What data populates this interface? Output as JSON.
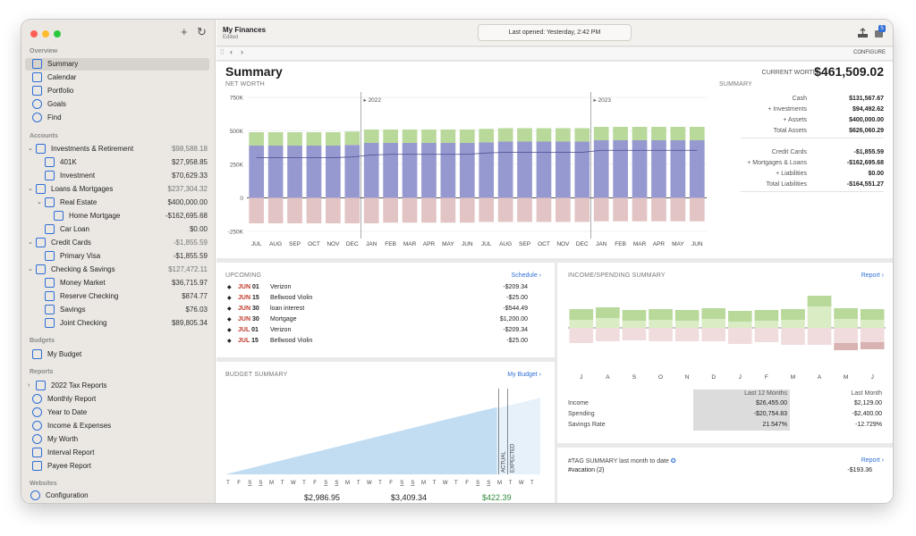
{
  "sidebar": {
    "add_btn": "+",
    "refresh_btn": "↻",
    "sections": {
      "overview": "Overview",
      "accounts": "Accounts",
      "budgets": "Budgets",
      "reports": "Reports",
      "websites": "Websites"
    },
    "overview": [
      {
        "label": "Summary",
        "icon": "bank-icon"
      },
      {
        "label": "Calendar",
        "icon": "calendar-icon"
      },
      {
        "label": "Portfolio",
        "icon": "briefcase-icon"
      },
      {
        "label": "Goals",
        "icon": "target-icon"
      },
      {
        "label": "Find",
        "icon": "magnifier-icon"
      }
    ],
    "accounts": [
      {
        "label": "Investments & Retirement",
        "value": "$98,588.18",
        "icon": "folder-icon"
      },
      {
        "label": "401K",
        "value": "$27,958.85",
        "icon": "sun-icon"
      },
      {
        "label": "Investment",
        "value": "$70,629.33",
        "icon": "chart-icon"
      },
      {
        "label": "Loans & Mortgages",
        "value": "$237,304.32",
        "icon": "folder-icon"
      },
      {
        "label": "Real Estate",
        "value": "$400,000.00",
        "icon": "house-icon"
      },
      {
        "label": "Home Mortgage",
        "value": "-$162,695.68",
        "icon": "document-icon"
      },
      {
        "label": "Car Loan",
        "value": "$0.00",
        "icon": "document-icon"
      },
      {
        "label": "Credit Cards",
        "value": "-$1,855.59",
        "icon": "folder-icon"
      },
      {
        "label": "Primary Visa",
        "value": "-$1,855.59",
        "icon": "credit-card-icon"
      },
      {
        "label": "Checking & Savings",
        "value": "$127,472.11",
        "icon": "folder-icon"
      },
      {
        "label": "Money Market",
        "value": "$36,715.97",
        "icon": "money-icon"
      },
      {
        "label": "Reserve Checking",
        "value": "$874.77",
        "icon": "check-icon"
      },
      {
        "label": "Savings",
        "value": "$76.03",
        "icon": "piggy-icon"
      },
      {
        "label": "Joint Checking",
        "value": "$89,805.34",
        "icon": "handshake-icon"
      }
    ],
    "budgets": [
      {
        "label": "My Budget",
        "icon": "budget-icon"
      }
    ],
    "reports": [
      {
        "label": "2022 Tax Reports",
        "icon": "folder-icon"
      },
      {
        "label": "Monthly Report",
        "icon": "pie-icon"
      },
      {
        "label": "Year to Date",
        "icon": "pie-icon"
      },
      {
        "label": "Income & Expenses",
        "icon": "pie-icon"
      },
      {
        "label": "My Worth",
        "icon": "pie-icon"
      },
      {
        "label": "Interval Report",
        "icon": "document-icon"
      },
      {
        "label": "Payee Report",
        "icon": "table-icon"
      }
    ],
    "websites": [
      {
        "label": "Configuration",
        "icon": "gear-icon"
      }
    ]
  },
  "header": {
    "title": "My Finances",
    "subtitle": "Edited",
    "last_opened": "Last opened: Yesterday, 2:42 PM",
    "configure": "CONFIGURE",
    "badge": "5"
  },
  "summary": {
    "title": "Summary",
    "current_worth_label": "CURRENT WORTH",
    "current_worth": "$461,509.02",
    "net_worth_label": "NET WORTH",
    "summary_label": "SUMMARY",
    "rows": [
      {
        "label": "Cash",
        "value": "$131,567.67"
      },
      {
        "label": "+ Investments",
        "value": "$94,492.62"
      },
      {
        "label": "+ Assets",
        "value": "$400,000.00"
      },
      {
        "label": "Total Assets",
        "value": "$626,060.29"
      },
      {
        "label": "Credit Cards",
        "value": "-$1,855.59"
      },
      {
        "label": "+ Mortgages & Loans",
        "value": "-$162,695.68"
      },
      {
        "label": "+ Liabilities",
        "value": "$0.00"
      },
      {
        "label": "Total Liabilities",
        "value": "-$164,551.27"
      }
    ]
  },
  "upcoming": {
    "title": "UPCOMING",
    "link": "Schedule ›",
    "rows": [
      {
        "month": "JUN",
        "day": "01",
        "name": "Verizon",
        "amount": "-$209.34"
      },
      {
        "month": "JUN",
        "day": "15",
        "name": "Bellwood Violin",
        "amount": "-$25.00"
      },
      {
        "month": "JUN",
        "day": "30",
        "name": "loan interest",
        "amount": "-$544.49"
      },
      {
        "month": "JUN",
        "day": "30",
        "name": "Mortgage",
        "amount": "$1,200.00"
      },
      {
        "month": "JUL",
        "day": "01",
        "name": "Verizon",
        "amount": "-$209.34"
      },
      {
        "month": "JUL",
        "day": "15",
        "name": "Bellwood Violin",
        "amount": "-$25.00"
      }
    ]
  },
  "budget": {
    "title": "BUDGET SUMMARY",
    "link": "My Budget ›",
    "actual_label": "ACTUAL",
    "expected_label": "EXPECTED",
    "days": [
      "T",
      "F",
      "S",
      "S",
      "M",
      "T",
      "W",
      "T",
      "F",
      "S",
      "S",
      "M",
      "T",
      "W",
      "T",
      "F",
      "S",
      "S",
      "M",
      "T",
      "W",
      "T",
      "F",
      "S",
      "S",
      "M",
      "T",
      "W",
      "T"
    ],
    "totals": [
      "$2,986.95",
      "$3,409.34",
      "$422.39"
    ]
  },
  "income": {
    "title": "INCOME/SPENDING SUMMARY",
    "link": "Report ›",
    "col1": "Last 12 Months",
    "col2": "Last Month",
    "rows": [
      {
        "label": "Income",
        "v1": "$26,455.00",
        "v2": "$2,129.00"
      },
      {
        "label": "Spending",
        "v1": "-$20,754.83",
        "v2": "-$2,400.00"
      },
      {
        "label": "Savings Rate",
        "v1": "21.547%",
        "v2": "-12.729%"
      }
    ]
  },
  "tags": {
    "title": "#TAG SUMMARY last month to date",
    "link": "Report ›",
    "rows": [
      {
        "name": "#vacation (2)",
        "amount": "-$193.36"
      }
    ]
  },
  "chart_data": [
    {
      "type": "bar",
      "title": "NET WORTH",
      "categories": [
        "JUL",
        "AUG",
        "SEP",
        "OCT",
        "NOV",
        "DEC",
        "JAN",
        "FEB",
        "MAR",
        "APR",
        "MAY",
        "JUN",
        "JUL",
        "AUG",
        "SEP",
        "OCT",
        "NOV",
        "DEC",
        "JAN",
        "FEB",
        "MAR",
        "APR",
        "MAY",
        "JUN"
      ],
      "ylim": [
        -250000,
        750000
      ],
      "yticks": [
        "750K",
        "500K",
        "250K",
        "0",
        "-250K"
      ],
      "markers": [
        "2022",
        "2023"
      ],
      "series": [
        {
          "values": [
            390000,
            390000,
            390000,
            390000,
            390000,
            395000,
            410000,
            410000,
            410000,
            410000,
            410000,
            410000,
            415000,
            420000,
            420000,
            420000,
            420000,
            420000,
            430000,
            430000,
            430000,
            430000,
            430000,
            430000
          ]
        },
        {
          "values": [
            100000,
            100000,
            100000,
            100000,
            100000,
            100000,
            100000,
            100000,
            100000,
            100000,
            100000,
            100000,
            100000,
            100000,
            100000,
            100000,
            100000,
            100000,
            100000,
            100000,
            100000,
            100000,
            100000,
            100000
          ]
        },
        {
          "values": [
            -190000,
            -190000,
            -190000,
            -190000,
            -190000,
            -190000,
            -190000,
            -185000,
            -185000,
            -185000,
            -185000,
            -185000,
            -180000,
            -180000,
            -180000,
            -180000,
            -180000,
            -180000,
            -175000,
            -175000,
            -175000,
            -175000,
            -175000,
            -175000
          ]
        }
      ]
    },
    {
      "type": "bar",
      "title": "INCOME/SPENDING SUMMARY",
      "categories": [
        "J",
        "A",
        "S",
        "O",
        "N",
        "D",
        "J",
        "F",
        "M",
        "A",
        "M",
        "J"
      ],
      "series": [
        {
          "name": "Income",
          "values": [
            2100,
            2300,
            2000,
            2100,
            2000,
            2200,
            1900,
            2000,
            2100,
            3600,
            2200,
            2100
          ]
        },
        {
          "name": "Spending",
          "values": [
            -1700,
            -1500,
            -1400,
            -1500,
            -1500,
            -1500,
            -1800,
            -1600,
            -1900,
            -1900,
            -2500,
            -2400
          ]
        }
      ]
    },
    {
      "type": "area",
      "title": "BUDGET SUMMARY",
      "values": [
        0,
        120,
        240,
        360,
        480,
        600,
        720,
        840,
        960,
        1080,
        1200,
        1320,
        1440,
        1560,
        1680,
        1800,
        1920,
        2040,
        2160,
        2280,
        2400,
        2520,
        2640,
        2760,
        2880,
        2986.95
      ],
      "expected": 3409.34
    }
  ],
  "colors": {
    "accent": "#2f6fd6",
    "red": "#c0392b",
    "green": "#2e8b3a",
    "invest": "#b9d99b",
    "cash": "#9699cf",
    "liab": "#e3c4c4"
  }
}
